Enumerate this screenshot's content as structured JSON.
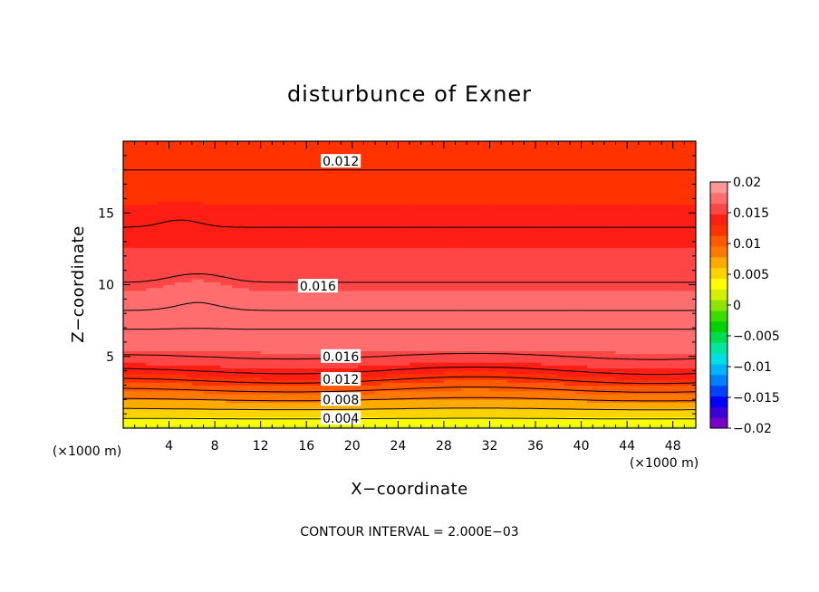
{
  "chart_data": {
    "type": "heatmap",
    "title": "disturbunce of Exner",
    "xlabel": "X−coordinate",
    "ylabel": "Z−coordinate",
    "x_unit": "(×1000 m)",
    "z_unit": "(×1000 m)",
    "xlim": [
      0,
      50
    ],
    "ylim": [
      0,
      20
    ],
    "xticks": [
      4,
      8,
      12,
      16,
      20,
      24,
      28,
      32,
      36,
      40,
      44,
      48
    ],
    "yticks": [
      5,
      10,
      15
    ],
    "footer": "CONTOUR INTERVAL = 2.000E−03",
    "contour_interval": 0.002,
    "colorbar": {
      "min": -0.02,
      "max": 0.02,
      "tick_values": [
        0.02,
        0.015,
        0.01,
        0.005,
        0,
        -0.005,
        -0.01,
        -0.015,
        -0.02
      ],
      "tick_labels": [
        "0.02",
        "0.015",
        "0.01",
        "0.005",
        "0",
        "−0.005",
        "−0.01",
        "−0.015",
        "−0.02"
      ],
      "colors": [
        "#7a00c8",
        "#3c00d8",
        "#0000ff",
        "#0040ff",
        "#0080ff",
        "#00b4ff",
        "#00e0e0",
        "#00e6a0",
        "#00dc50",
        "#00d200",
        "#3cdc00",
        "#8ce600",
        "#d2f000",
        "#ffff00",
        "#ffd200",
        "#ffaa00",
        "#ff7800",
        "#ff5a00",
        "#ff3200",
        "#ff1e14",
        "#ff4646",
        "#ff6e6e",
        "#ff9696"
      ]
    },
    "field_profile": {
      "z": [
        0,
        0.5,
        1,
        1.5,
        2,
        2.5,
        3,
        3.5,
        4,
        4.5,
        5,
        6,
        7,
        8,
        9,
        10,
        11,
        12,
        13,
        14,
        15,
        16,
        17,
        18,
        19,
        20
      ],
      "value": [
        0.002,
        0.0035,
        0.005,
        0.0065,
        0.008,
        0.0095,
        0.011,
        0.0125,
        0.014,
        0.015,
        0.016,
        0.0172,
        0.0181,
        0.0182,
        0.0172,
        0.0161,
        0.0155,
        0.015,
        0.0146,
        0.014,
        0.0134,
        0.0128,
        0.0122,
        0.012,
        0.0117,
        0.0114
      ]
    },
    "contour_labels": [
      {
        "text": "0.012",
        "x": 19,
        "z": 18.6
      },
      {
        "text": "0.016",
        "x": 17,
        "z": 9.9
      },
      {
        "text": "0.016",
        "x": 19,
        "z": 5.0
      },
      {
        "text": "0.012",
        "x": 19,
        "z": 3.4
      },
      {
        "text": "0.008",
        "x": 19,
        "z": 2.0
      },
      {
        "text": "0.004",
        "x": 19,
        "z": 0.7
      }
    ]
  }
}
